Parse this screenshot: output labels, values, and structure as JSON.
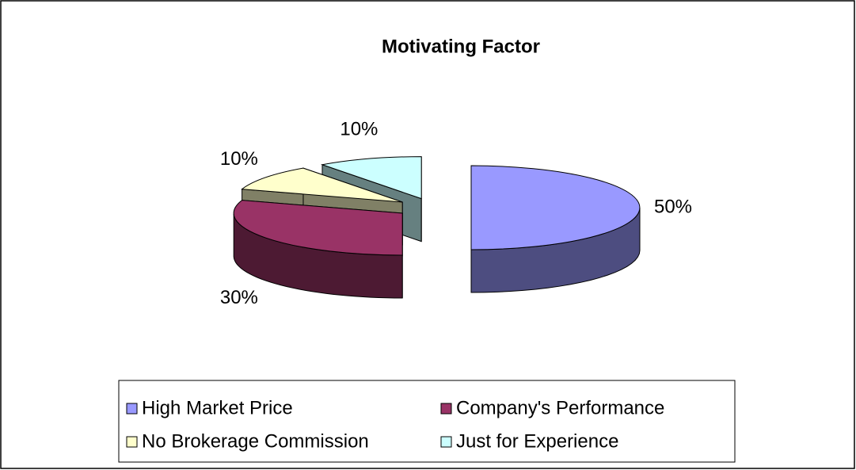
{
  "chart_data": {
    "type": "pie",
    "title": "Motivating Factor",
    "categories": [
      "High Market Price",
      "Company's Performance",
      "No Brokerage Commission",
      "Just for Experience"
    ],
    "values": [
      50,
      30,
      10,
      10
    ],
    "value_labels": [
      "50%",
      "30%",
      "10%",
      "10%"
    ],
    "colors": [
      "#9999ff",
      "#993366",
      "#ffffcc",
      "#ccffff"
    ],
    "legend": "bottom",
    "three_d": true
  }
}
